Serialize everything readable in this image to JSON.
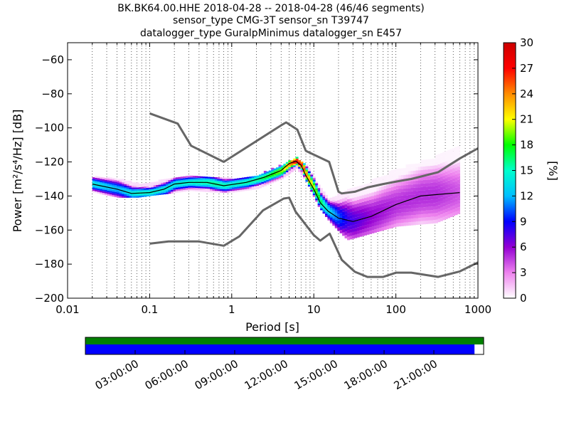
{
  "chart_data": {
    "type": "heatmap",
    "title_lines": [
      "BK.BK64.00.HHE   2018-04-28 -- 2018-04-28  (46/46 segments)",
      "sensor_type CMG-3T sensor_sn T39747",
      "datalogger_type GuralpMinimus datalogger_sn E457"
    ],
    "xlabel": "Period [s]",
    "ylabel": "Power [m²/s⁴/Hz] [dB]",
    "x_scale": "log",
    "xlim": [
      0.01,
      1000
    ],
    "ylim": [
      -200,
      -50
    ],
    "x_ticks": [
      {
        "value": 0.01,
        "label": "0.01"
      },
      {
        "value": 0.1,
        "label": "0.1"
      },
      {
        "value": 1,
        "label": "1"
      },
      {
        "value": 10,
        "label": "10"
      },
      {
        "value": 100,
        "label": "100"
      },
      {
        "value": 1000,
        "label": "1000"
      }
    ],
    "y_ticks": [
      {
        "value": -60,
        "label": "−60"
      },
      {
        "value": -80,
        "label": "−80"
      },
      {
        "value": -100,
        "label": "−100"
      },
      {
        "value": -120,
        "label": "−120"
      },
      {
        "value": -140,
        "label": "−140"
      },
      {
        "value": -160,
        "label": "−160"
      },
      {
        "value": -180,
        "label": "−180"
      },
      {
        "value": -200,
        "label": "−200"
      }
    ],
    "grid": "dotted vertical at periods",
    "colorbar": {
      "label": "[%]",
      "range": [
        0,
        30
      ],
      "ticks": [
        {
          "value": 0,
          "label": "0"
        },
        {
          "value": 3,
          "label": "3"
        },
        {
          "value": 6,
          "label": "6"
        },
        {
          "value": 9,
          "label": "9"
        },
        {
          "value": 12,
          "label": "12"
        },
        {
          "value": 15,
          "label": "15"
        },
        {
          "value": 18,
          "label": "18"
        },
        {
          "value": 21,
          "label": "21"
        },
        {
          "value": 24,
          "label": "24"
        },
        {
          "value": 27,
          "label": "27"
        },
        {
          "value": 30,
          "label": "30"
        }
      ],
      "stops": [
        "#ffffff",
        "#ee82ee",
        "#9400d3",
        "#0000ff",
        "#00bfff",
        "#00ffcc",
        "#00ff00",
        "#ffff00",
        "#ff8c00",
        "#ff0000",
        "#cc0000"
      ]
    },
    "noise_models": [
      {
        "color": "#666666",
        "points": [
          [
            0.1,
            -91.5
          ],
          [
            0.22,
            -97.5
          ],
          [
            0.32,
            -110.5
          ],
          [
            0.8,
            -120
          ],
          [
            4,
            -98.5
          ],
          [
            4.6,
            -96.8
          ],
          [
            6.3,
            -101
          ],
          [
            8,
            -113.5
          ],
          [
            15.4,
            -120
          ],
          [
            20,
            -137.5
          ],
          [
            21.9,
            -138.5
          ],
          [
            31.6,
            -137.5
          ],
          [
            45,
            -135
          ],
          [
            70,
            -133
          ],
          [
            101,
            -131.5
          ],
          [
            154,
            -130
          ],
          [
            328,
            -126
          ],
          [
            600,
            -118
          ],
          [
            1000,
            -112
          ]
        ]
      },
      {
        "color": "#666666",
        "points": [
          [
            0.1,
            -168
          ],
          [
            0.17,
            -166.7
          ],
          [
            0.4,
            -166.7
          ],
          [
            0.8,
            -169.2
          ],
          [
            1.24,
            -163.7
          ],
          [
            2.4,
            -148.5
          ],
          [
            4.3,
            -141.5
          ],
          [
            5,
            -141
          ],
          [
            6,
            -149.2
          ],
          [
            10,
            -163
          ],
          [
            12,
            -166.2
          ],
          [
            15.6,
            -162.1
          ],
          [
            21.9,
            -177.5
          ],
          [
            31.6,
            -184.5
          ],
          [
            45,
            -187.5
          ],
          [
            70,
            -187.5
          ],
          [
            101,
            -185
          ],
          [
            154,
            -185
          ],
          [
            328,
            -187.5
          ],
          [
            600,
            -184.3
          ],
          [
            1000,
            -179
          ]
        ]
      }
    ],
    "mean_curve": [
      [
        0.02,
        -133
      ],
      [
        0.04,
        -136
      ],
      [
        0.06,
        -138.5
      ],
      [
        0.1,
        -138
      ],
      [
        0.15,
        -136
      ],
      [
        0.2,
        -133
      ],
      [
        0.3,
        -132
      ],
      [
        0.5,
        -132
      ],
      [
        0.8,
        -134
      ],
      [
        1.5,
        -132
      ],
      [
        2.5,
        -129
      ],
      [
        4,
        -125
      ],
      [
        5,
        -121
      ],
      [
        6,
        -119.5
      ],
      [
        7,
        -122
      ],
      [
        8,
        -128
      ],
      [
        10,
        -136
      ],
      [
        12,
        -144
      ],
      [
        15,
        -149
      ],
      [
        20,
        -153
      ],
      [
        30,
        -155
      ],
      [
        50,
        -152
      ],
      [
        100,
        -145
      ],
      [
        200,
        -140
      ],
      [
        600,
        -138
      ]
    ],
    "heatmap_band": [
      {
        "period": 0.02,
        "low": -138,
        "high": -129,
        "peak": 14
      },
      {
        "period": 0.04,
        "low": -141,
        "high": -130,
        "peak": 12
      },
      {
        "period": 0.07,
        "low": -141,
        "high": -133,
        "peak": 15
      },
      {
        "period": 0.1,
        "low": -140,
        "high": -133,
        "peak": 15
      },
      {
        "period": 0.15,
        "low": -139,
        "high": -130,
        "peak": 14
      },
      {
        "period": 0.3,
        "low": -137,
        "high": -129,
        "peak": 15
      },
      {
        "period": 0.6,
        "low": -138,
        "high": -129,
        "peak": 16
      },
      {
        "period": 1,
        "low": -138,
        "high": -130,
        "peak": 15
      },
      {
        "period": 2,
        "low": -136,
        "high": -128,
        "peak": 16
      },
      {
        "period": 4,
        "low": -130,
        "high": -122,
        "peak": 20
      },
      {
        "period": 6,
        "low": -124,
        "high": -118,
        "peak": 29
      },
      {
        "period": 8,
        "low": -132,
        "high": -122,
        "peak": 24
      },
      {
        "period": 11,
        "low": -146,
        "high": -134,
        "peak": 18
      },
      {
        "period": 15,
        "low": -155,
        "high": -142,
        "peak": 13
      },
      {
        "period": 25,
        "low": -166,
        "high": -138,
        "peak": 8
      },
      {
        "period": 50,
        "low": -162,
        "high": -132,
        "peak": 6
      },
      {
        "period": 100,
        "low": -158,
        "high": -125,
        "peak": 5
      },
      {
        "period": 300,
        "low": -156,
        "high": -118,
        "peak": 5
      },
      {
        "period": 600,
        "low": -150,
        "high": -110,
        "peak": 4
      }
    ],
    "time_axis": {
      "labels": [
        "03:00:00",
        "06:00:00",
        "09:00:00",
        "12:00:00",
        "15:00:00",
        "18:00:00",
        "21:00:00"
      ],
      "coverage_fraction": 0.977,
      "top_color": "#008000",
      "bottom_color": "#0000ff"
    }
  }
}
